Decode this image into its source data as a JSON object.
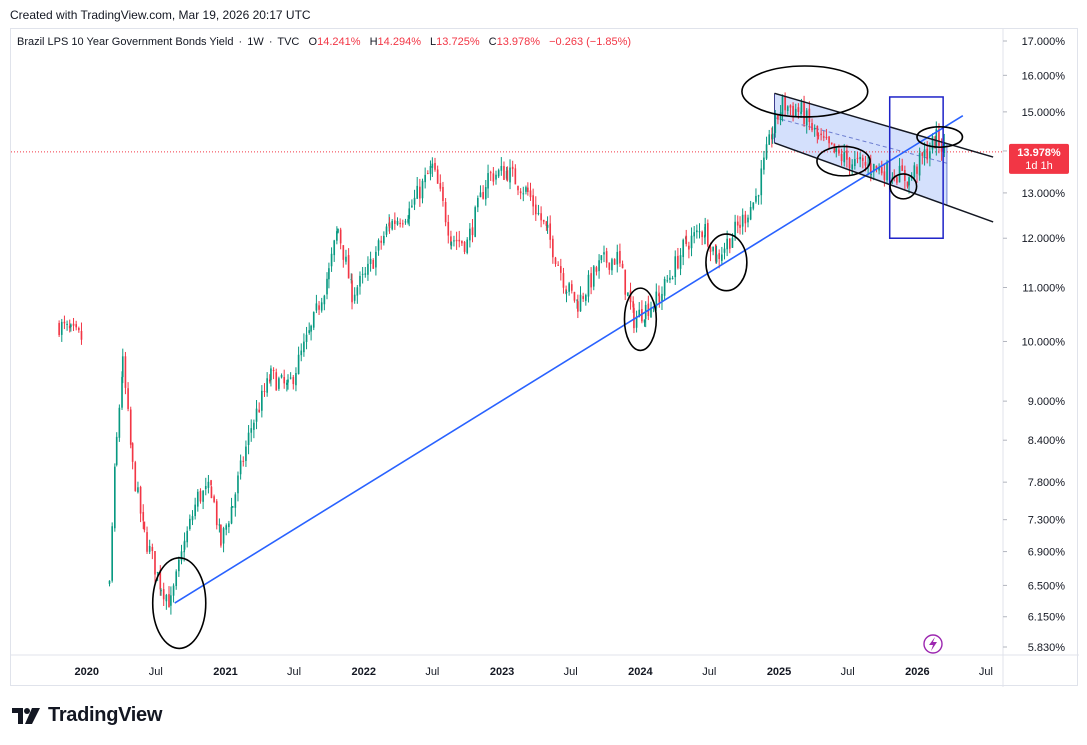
{
  "caption": "Created with TradingView.com, Mar 19, 2026 20:17 UTC",
  "legend": {
    "symbol_name": "Brazil LPS 10 Year Government Bonds Yield",
    "interval": "1W",
    "source": "TVC",
    "open_label": "O",
    "open": "14.241%",
    "high_label": "H",
    "high": "14.294%",
    "low_label": "L",
    "low": "13.725%",
    "close_label": "C",
    "close": "13.978%",
    "change": "−0.263 (−1.85%)"
  },
  "price_tag": {
    "value": "13.978%",
    "countdown": "1d 1h"
  },
  "footer": {
    "brand": "TradingView"
  },
  "colors": {
    "up": "#089981",
    "down": "#f23645",
    "trendline": "#2962ff",
    "channel_fill": "#c5d6fb",
    "highlight_box": "#1e22c8",
    "price_line": "#f23645"
  },
  "icons": [
    "tradingview-logo-icon",
    "lightning-icon"
  ],
  "chart_data": {
    "type": "candlestick",
    "interval": "1W",
    "scale": "log",
    "y_unit": "%",
    "y_ticks": [
      "17.000%",
      "16.000%",
      "15.000%",
      "14.000%",
      "13.000%",
      "12.000%",
      "11.000%",
      "10.000%",
      "9.000%",
      "8.400%",
      "7.800%",
      "7.300%",
      "6.900%",
      "6.500%",
      "6.150%",
      "5.830%"
    ],
    "x_ticks": [
      "2020",
      "Jul",
      "2021",
      "Jul",
      "2022",
      "Jul",
      "2023",
      "Jul",
      "2024",
      "Jul",
      "2025",
      "Jul",
      "2026",
      "Jul"
    ],
    "xlim": [
      "2019-06-15",
      "2026-08-15"
    ],
    "ylim": [
      5.7,
      17.4
    ],
    "last_close": 13.978,
    "ohlc_last": {
      "open": 14.241,
      "high": 14.294,
      "low": 13.725,
      "close": 13.978
    },
    "price_path": [
      [
        "2019-10-20",
        10.3
      ],
      [
        "2019-11-20",
        10.15
      ],
      [
        "2019-12-20",
        10.05
      ],
      [
        "2020-03-01",
        6.5
      ],
      [
        "2020-03-20",
        8.4
      ],
      [
        "2020-04-05",
        9.6
      ],
      [
        "2020-05-01",
        8.0
      ],
      [
        "2020-06-01",
        7.1
      ],
      [
        "2020-07-15",
        6.5
      ],
      [
        "2020-08-10",
        6.3
      ],
      [
        "2020-09-15",
        7.0
      ],
      [
        "2020-10-20",
        7.6
      ],
      [
        "2020-11-25",
        7.7
      ],
      [
        "2020-12-20",
        7.0
      ],
      [
        "2021-01-20",
        7.5
      ],
      [
        "2021-03-10",
        8.6
      ],
      [
        "2021-05-01",
        9.4
      ],
      [
        "2021-06-15",
        9.2
      ],
      [
        "2021-08-15",
        10.2
      ],
      [
        "2021-10-01",
        11.3
      ],
      [
        "2021-10-25",
        12.2
      ],
      [
        "2021-12-01",
        10.9
      ],
      [
        "2022-01-05",
        11.2
      ],
      [
        "2022-03-10",
        12.3
      ],
      [
        "2022-05-01",
        12.6
      ],
      [
        "2022-07-01",
        13.6
      ],
      [
        "2022-08-20",
        12.0
      ],
      [
        "2022-10-01",
        11.9
      ],
      [
        "2022-11-25",
        13.4
      ],
      [
        "2023-01-15",
        13.5
      ],
      [
        "2023-03-10",
        13.0
      ],
      [
        "2023-05-01",
        12.1
      ],
      [
        "2023-06-20",
        11.0
      ],
      [
        "2023-07-20",
        10.7
      ],
      [
        "2023-09-20",
        11.5
      ],
      [
        "2023-11-01",
        11.6
      ],
      [
        "2023-12-15",
        10.4
      ],
      [
        "2024-01-15",
        10.6
      ],
      [
        "2024-02-20",
        10.8
      ],
      [
        "2024-05-01",
        11.9
      ],
      [
        "2024-06-20",
        12.2
      ],
      [
        "2024-07-20",
        11.6
      ],
      [
        "2024-09-20",
        12.3
      ],
      [
        "2024-11-01",
        12.9
      ],
      [
        "2024-12-15",
        14.5
      ],
      [
        "2025-01-10",
        15.2
      ],
      [
        "2025-03-01",
        15.0
      ],
      [
        "2025-04-15",
        14.3
      ],
      [
        "2025-06-01",
        13.9
      ],
      [
        "2025-07-20",
        13.7
      ],
      [
        "2025-09-01",
        13.6
      ],
      [
        "2025-11-01",
        13.5
      ],
      [
        "2025-12-10",
        13.3
      ],
      [
        "2026-01-20",
        13.9
      ],
      [
        "2026-02-20",
        14.3
      ],
      [
        "2026-03-19",
        13.978
      ]
    ],
    "annotations": {
      "trendline": [
        [
          "2020-08-20",
          6.3
        ],
        [
          "2026-05-01",
          14.9
        ]
      ],
      "channel_upper": [
        [
          "2024-12-20",
          15.5
        ],
        [
          "2026-07-20",
          13.85
        ]
      ],
      "channel_lower": [
        [
          "2024-12-20",
          14.2
        ],
        [
          "2026-07-20",
          12.35
        ]
      ],
      "channel_fill_end": "2026-03-20",
      "channel_midline": [
        [
          "2024-12-20",
          14.85
        ],
        [
          "2026-03-20",
          13.7
        ]
      ],
      "highlight_box": {
        "x": [
          "2025-10-20",
          "2026-03-10"
        ],
        "y": [
          12.0,
          15.4
        ]
      },
      "circles": [
        {
          "center": [
            "2020-09-01",
            6.3
          ],
          "rx_days": 70,
          "ry_log": 0.08
        },
        {
          "center": [
            "2024-01-01",
            10.4
          ],
          "rx_days": 42,
          "ry_log": 0.055
        },
        {
          "center": [
            "2024-08-15",
            11.5
          ],
          "rx_days": 54,
          "ry_log": 0.05
        },
        {
          "center": [
            "2025-03-10",
            15.55
          ],
          "rx_days": 166,
          "ry_log": 0.045
        },
        {
          "center": [
            "2025-06-20",
            13.75
          ],
          "rx_days": 70,
          "ry_log": 0.026
        },
        {
          "center": [
            "2025-11-25",
            13.15
          ],
          "rx_days": 35,
          "ry_log": 0.022
        },
        {
          "center": [
            "2026-03-01",
            14.35
          ],
          "rx_days": 60,
          "ry_log": 0.018
        }
      ]
    }
  }
}
